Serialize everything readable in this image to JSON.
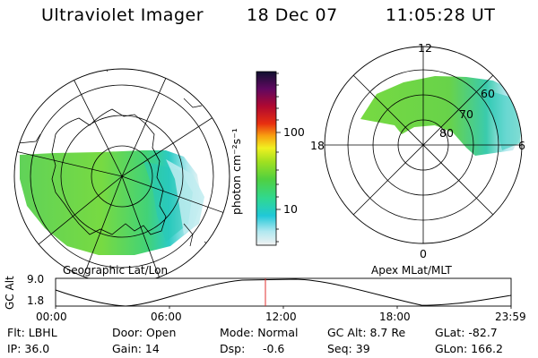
{
  "header": {
    "title": "Ultraviolet Imager",
    "date": "18 Dec 07",
    "time": "11:05:28 UT"
  },
  "colorbar": {
    "unit_label": "photon cm⁻²s⁻¹",
    "ticks": [
      "100",
      "10"
    ]
  },
  "left_panel": {
    "caption": "Geographic Lat/Lon"
  },
  "right_panel": {
    "caption": "Apex MLat/MLT",
    "mlt_labels": {
      "top": "12",
      "left": "18",
      "right": "6",
      "bottom": "0"
    },
    "lat_labels": [
      "60",
      "70",
      "80"
    ]
  },
  "timeline": {
    "ylabel": "GC Alt",
    "y_ticks": [
      "9.0",
      "1.8"
    ],
    "x_ticks": [
      "00:00",
      "06:00",
      "12:00",
      "18:00",
      "23:59"
    ],
    "marker_color": "#e03030"
  },
  "info": {
    "flt": "Flt: LBHL",
    "ip": "IP: 36.0",
    "door": "Door: Open",
    "gain": "Gain: 14",
    "mode": "Mode: Normal",
    "dsp_label": "Dsp:",
    "dsp_value": "-0.6",
    "gc_alt": "GC Alt: 8.7 Re",
    "seq": "Seq: 39",
    "glat": "GLat: -82.7",
    "glon": "GLon: 166.2"
  }
}
